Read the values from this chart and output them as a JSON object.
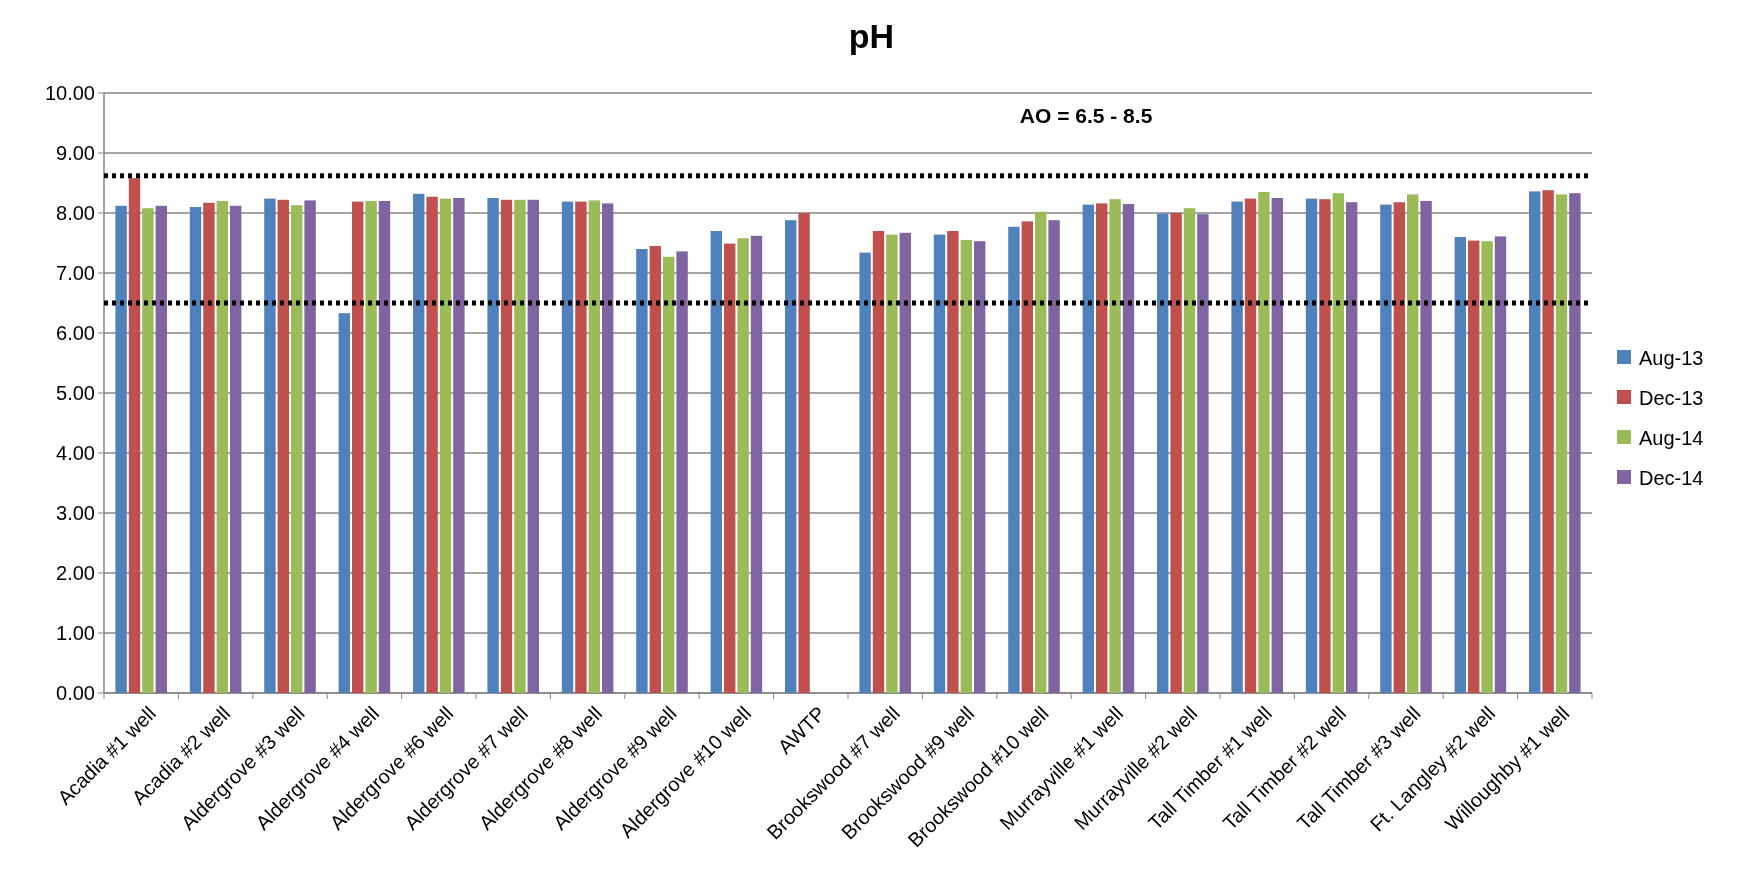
{
  "chart_data": {
    "type": "bar",
    "title": "pH",
    "categories": [
      "Acadia #1 well",
      "Acadia #2 well",
      "Aldergrove #3 well",
      "Aldergrove #4 well",
      "Aldergrove #6 well",
      "Aldergrove #7 well",
      "Aldergrove #8 well",
      "Aldergrove #9 well",
      "Aldergrove #10 well",
      "AWTP",
      "Brookswood #7 well",
      "Brookswood #9 well",
      "Brookswood #10 well",
      "Murrayville #1 well",
      "Murrayville #2 well",
      "Tall Timber #1 well",
      "Tall Timber #2 well",
      "Tall Timber #3 well",
      "Ft. Langley #2 well",
      "Willoughby #1 well"
    ],
    "series": [
      {
        "name": "Aug-13",
        "color": "#4f81bd",
        "values": [
          8.12,
          8.1,
          8.24,
          6.33,
          8.32,
          8.25,
          8.19,
          7.4,
          7.7,
          7.88,
          7.34,
          7.64,
          7.77,
          8.14,
          7.99,
          8.19,
          8.24,
          8.14,
          7.6,
          8.36
        ]
      },
      {
        "name": "Dec-13",
        "color": "#c0504d",
        "values": [
          8.58,
          8.17,
          8.22,
          8.19,
          8.27,
          8.22,
          8.19,
          7.45,
          7.49,
          8.0,
          7.7,
          7.7,
          7.86,
          8.16,
          8.0,
          8.24,
          8.23,
          8.18,
          7.54,
          8.38
        ]
      },
      {
        "name": "Aug-14",
        "color": "#9bbb59",
        "values": [
          8.08,
          8.2,
          8.13,
          8.2,
          8.24,
          8.22,
          8.21,
          7.27,
          7.58,
          null,
          7.64,
          7.55,
          8.02,
          8.23,
          8.08,
          8.35,
          8.33,
          8.31,
          7.53,
          8.31
        ]
      },
      {
        "name": "Dec-14",
        "color": "#8064a2",
        "values": [
          8.12,
          8.12,
          8.21,
          8.2,
          8.25,
          8.22,
          8.16,
          7.36,
          7.62,
          null,
          7.67,
          7.53,
          7.88,
          8.15,
          7.98,
          8.25,
          8.18,
          8.2,
          7.61,
          8.33
        ]
      }
    ],
    "ylim": [
      0,
      10
    ],
    "yticks": [
      {
        "value": 0,
        "label": "0.00"
      },
      {
        "value": 1,
        "label": "1.00"
      },
      {
        "value": 2,
        "label": "2.00"
      },
      {
        "value": 3,
        "label": "3.00"
      },
      {
        "value": 4,
        "label": "4.00"
      },
      {
        "value": 5,
        "label": "5.00"
      },
      {
        "value": 6,
        "label": "6.00"
      },
      {
        "value": 7,
        "label": "7.00"
      },
      {
        "value": 8,
        "label": "8.00"
      },
      {
        "value": 9,
        "label": "9.00"
      },
      {
        "value": 10,
        "label": "10.00"
      }
    ],
    "grid": "y",
    "legend": "right",
    "ref_lines": [
      {
        "axis": "y",
        "value": 8.62,
        "color": "#000000",
        "line_style": "dotted"
      },
      {
        "axis": "y",
        "value": 6.5,
        "color": "#000000",
        "line_style": "dotted"
      }
    ],
    "annotations": [
      "AO = 6.5 - 8.5"
    ]
  }
}
